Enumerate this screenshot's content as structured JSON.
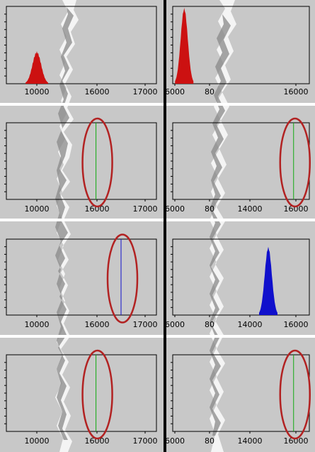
{
  "colors": {
    "background": "#c8c8c8",
    "red_histogram": "#cc1111",
    "blue_histogram": "#1010cc",
    "green_line": "#11aa11",
    "blue_line": "#1010cc",
    "ellipse": "#b22222",
    "divider_white": "#ffffff",
    "divider_black": "#000000"
  },
  "panels": [
    {
      "id": "r1-left",
      "ticks": [
        "10000",
        "16000",
        "17000"
      ],
      "histogram": {
        "color": "red",
        "peak_x": 10000,
        "max_count_fraction": 0.42
      }
    },
    {
      "id": "r1-right",
      "ticks": [
        "6000",
        "80",
        "16000"
      ],
      "histogram": {
        "color": "red",
        "peak_x": 7000,
        "max_count_fraction": 0.98
      }
    },
    {
      "id": "r2-left",
      "ticks": [
        "10000",
        "16000",
        "17000"
      ],
      "marker": {
        "color": "green",
        "x": 15900,
        "circled": true
      }
    },
    {
      "id": "r2-right",
      "ticks": [
        "6000",
        "80",
        "14000",
        "16000"
      ],
      "marker": {
        "color": "green",
        "x": 15900,
        "circled": true
      }
    },
    {
      "id": "r3-left",
      "ticks": [
        "10000",
        "16000",
        "17000"
      ],
      "marker": {
        "color": "blue",
        "x": 16500,
        "circled": true
      }
    },
    {
      "id": "r3-right",
      "ticks": [
        "6000",
        "80",
        "14000",
        "16000"
      ],
      "histogram": {
        "color": "blue",
        "peak_x": 14800,
        "max_count_fraction": 0.9
      }
    },
    {
      "id": "r4-left",
      "ticks": [
        "10000",
        "16000",
        "17000"
      ],
      "marker": {
        "color": "green",
        "x": 15900,
        "circled": true
      }
    },
    {
      "id": "r4-right",
      "ticks": [
        "6000",
        "80",
        "14000",
        "16000"
      ],
      "marker": {
        "color": "green",
        "x": 15900,
        "circled": true
      }
    }
  ]
}
